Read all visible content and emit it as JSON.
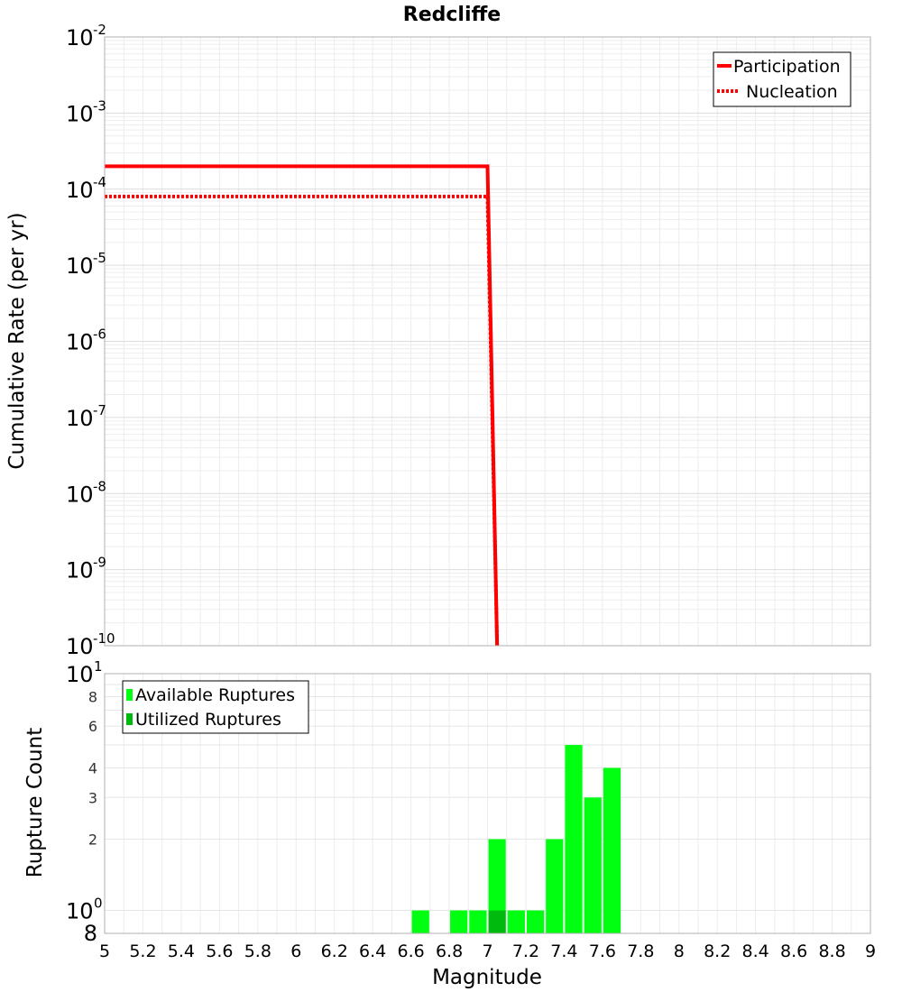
{
  "chart_data": [
    {
      "type": "line",
      "title": "Redcliffe",
      "xlabel": "",
      "ylabel": "Cumulative Rate (per yr)",
      "xlim": [
        5,
        9
      ],
      "ylim": [
        1e-10,
        0.01
      ],
      "yscale": "log",
      "y_tick_exponents": [
        -2,
        -3,
        -4,
        -5,
        -6,
        -7,
        -8,
        -9,
        -10
      ],
      "grid": true,
      "legend": "top-right",
      "series": [
        {
          "name": "Participation",
          "style": "solid",
          "color": "#ff0000",
          "x": [
            5.0,
            7.0,
            7.05
          ],
          "y": [
            0.0002,
            0.0002,
            1e-10
          ]
        },
        {
          "name": "Nucleation",
          "style": "dotted",
          "color": "#ff0000",
          "x": [
            5.0,
            7.0,
            7.05
          ],
          "y": [
            8e-05,
            8e-05,
            1e-10
          ]
        }
      ]
    },
    {
      "type": "bar",
      "xlabel": "Magnitude",
      "ylabel": "Rupture Count",
      "xlim": [
        5,
        9
      ],
      "ylim": [
        0.8,
        10
      ],
      "yscale": "log",
      "bin_width": 0.1,
      "x_ticks": [
        "5",
        "5.2",
        "5.4",
        "5.6",
        "5.8",
        "6",
        "6.2",
        "6.4",
        "6.6",
        "6.8",
        "7",
        "7.2",
        "7.4",
        "7.6",
        "7.8",
        "8",
        "8.2",
        "8.4",
        "8.6",
        "8.8",
        "9"
      ],
      "y_ticks": [
        "8",
        "6",
        "4",
        "3",
        "2"
      ],
      "y_bottom_label": "8",
      "grid": true,
      "legend": "top-left",
      "series": [
        {
          "name": "Available Ruptures",
          "color": "#00ff11",
          "x": [
            6.65,
            6.85,
            6.95,
            7.05,
            7.15,
            7.25,
            7.35,
            7.45,
            7.55,
            7.65
          ],
          "values": [
            1,
            1,
            1,
            2,
            1,
            1,
            2,
            5,
            3,
            4
          ]
        },
        {
          "name": "Utilized Ruptures",
          "color": "#00bb0d",
          "x": [
            7.05
          ],
          "values": [
            1
          ]
        }
      ]
    }
  ]
}
